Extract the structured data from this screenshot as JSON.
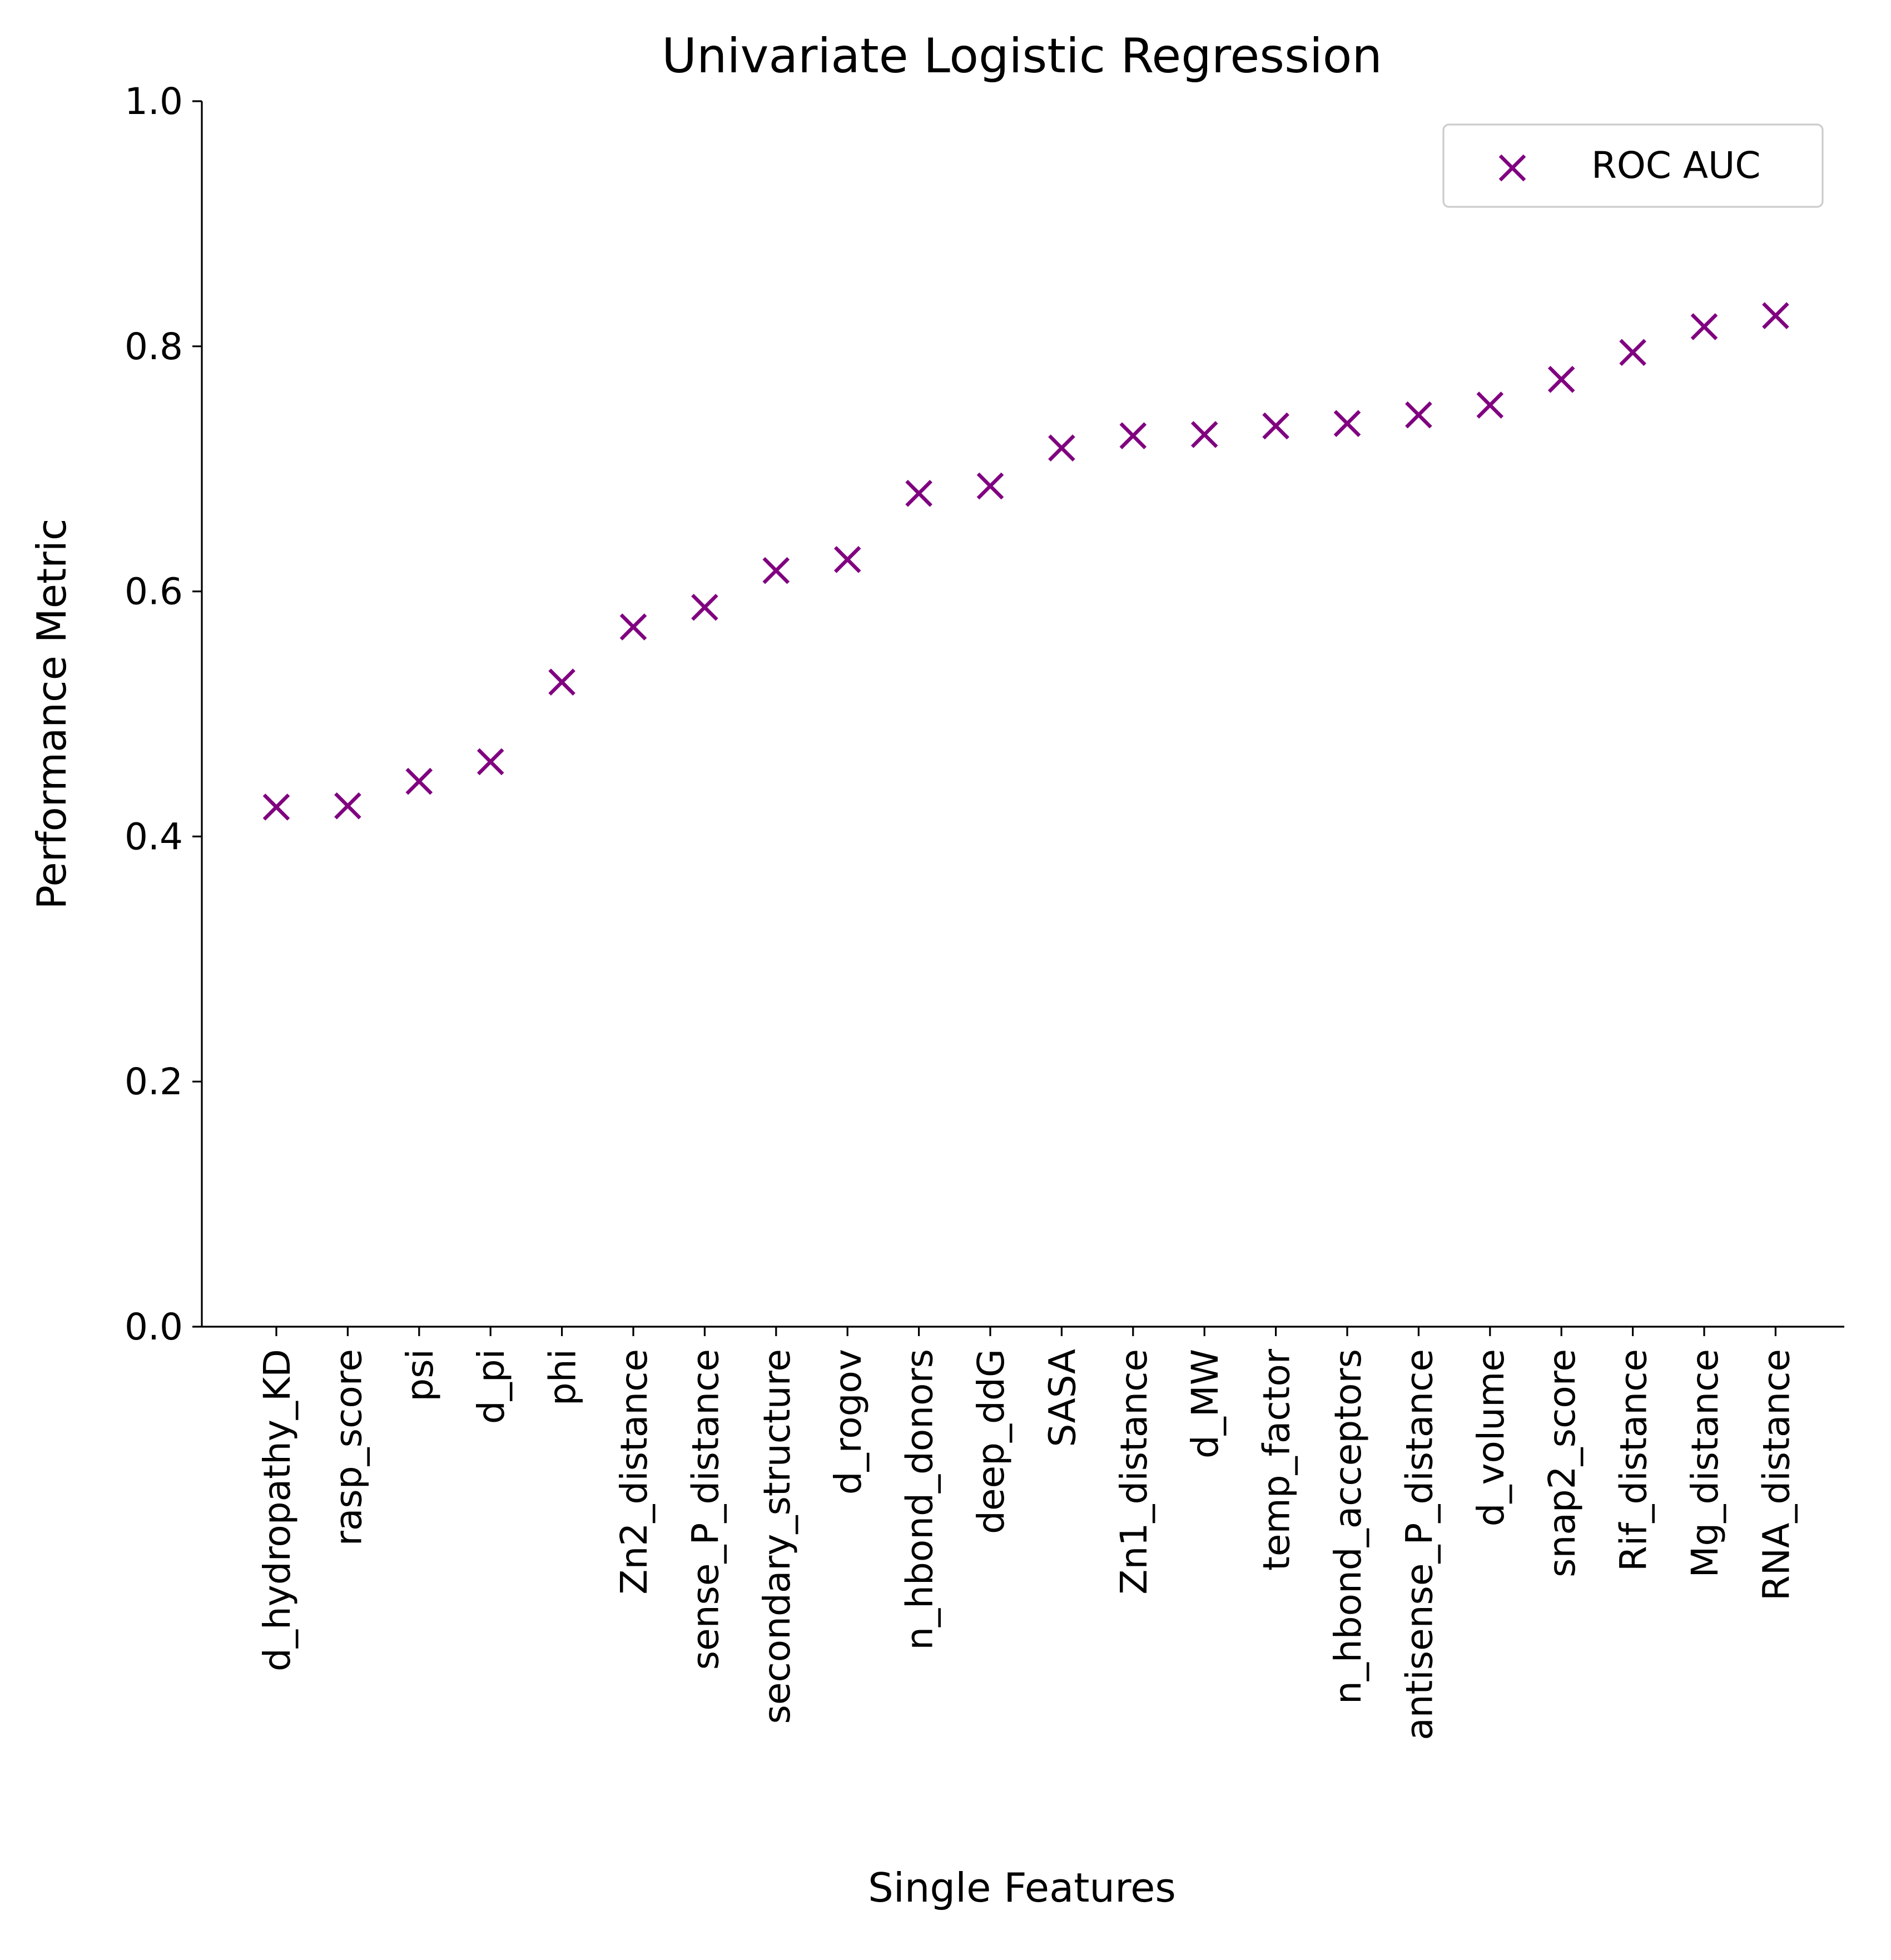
{
  "chart_data": {
    "type": "scatter",
    "title": "Univariate Logistic Regression",
    "xlabel": "Single Features",
    "ylabel": "Performance Metric",
    "ylim": [
      0,
      1.0
    ],
    "yticks": [
      "0.0",
      "0.2",
      "0.4",
      "0.6",
      "0.8",
      "1.0"
    ],
    "grid": false,
    "legend_position": "top-right",
    "marker": "x",
    "color": "#800080",
    "categories": [
      "d_hydropathy_KD",
      "rasp_score",
      "psi",
      "d_pi",
      "phi",
      "Zn2_distance",
      "sense_P_distance",
      "secondary_structure",
      "d_rogov",
      "n_hbond_donors",
      "deep_ddG",
      "SASA",
      "Zn1_distance",
      "d_MW",
      "temp_factor",
      "n_hbond_acceptors",
      "antisense_P_distance",
      "d_volume",
      "snap2_score",
      "Rif_distance",
      "Mg_distance",
      "RNA_distance"
    ],
    "series": [
      {
        "name": "ROC AUC",
        "values": [
          0.424,
          0.425,
          0.445,
          0.461,
          0.526,
          0.571,
          0.587,
          0.617,
          0.626,
          0.68,
          0.686,
          0.717,
          0.727,
          0.728,
          0.735,
          0.737,
          0.744,
          0.752,
          0.773,
          0.795,
          0.816,
          0.825
        ]
      }
    ]
  }
}
